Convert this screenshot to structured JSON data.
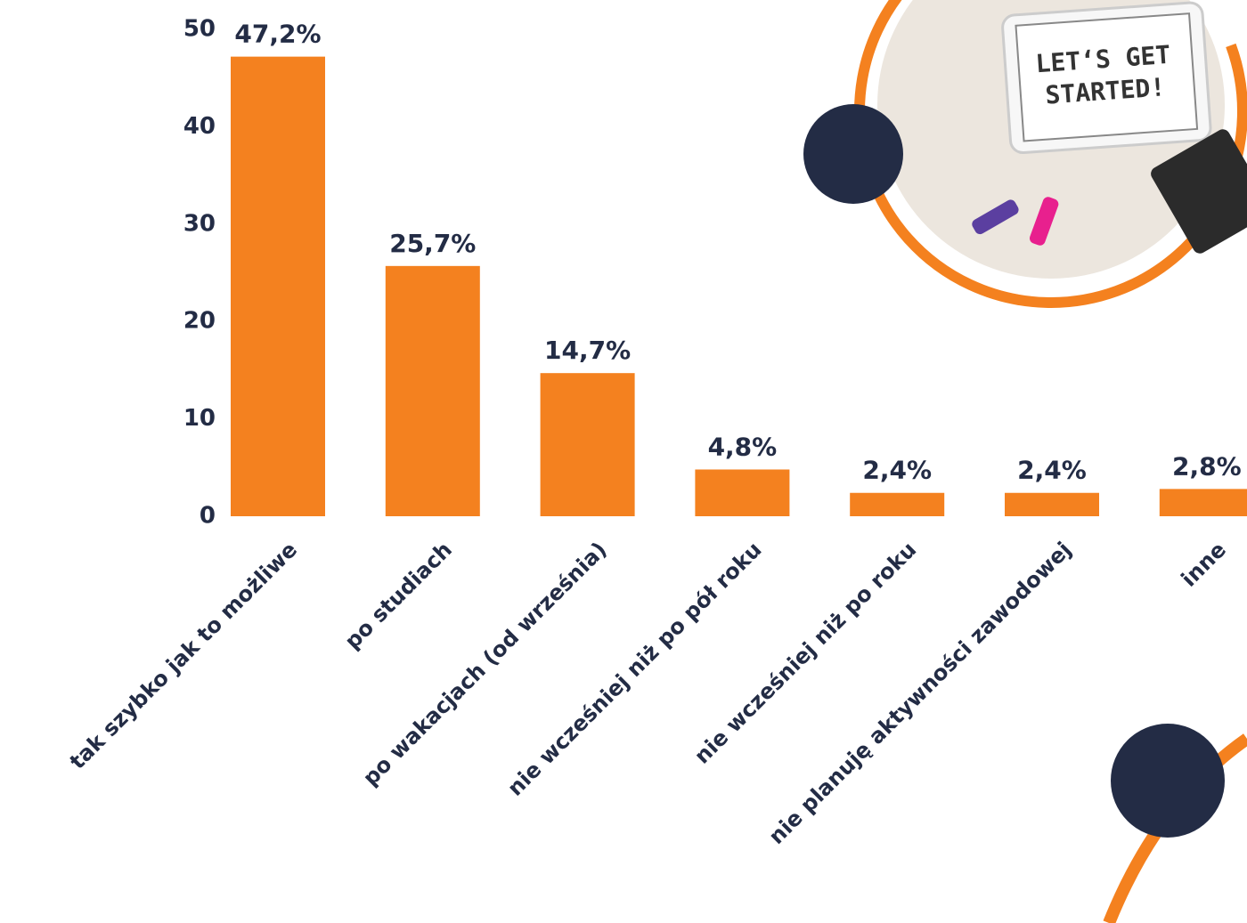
{
  "chart_data": {
    "type": "bar",
    "categories": [
      "tak szybko jak to możliwe",
      "po studiach",
      "po wakacjach (od września)",
      "nie wcześniej niż po pół roku",
      "nie wcześniej niż po roku",
      "nie planuję aktywności zawodowej",
      "inne"
    ],
    "values": [
      47.2,
      25.7,
      14.7,
      4.8,
      2.4,
      2.4,
      2.8
    ],
    "value_labels": [
      "47,2%",
      "25,7%",
      "14,7%",
      "4,8%",
      "2,4%",
      "2,4%",
      "2,8%"
    ],
    "color": "#f4811f",
    "ylim": [
      0,
      50
    ],
    "yticks": [
      0,
      10,
      20,
      30,
      40,
      50
    ],
    "grid": false
  },
  "decoration": {
    "photo_text": [
      "LET‘S GET",
      "STARTED!"
    ]
  }
}
